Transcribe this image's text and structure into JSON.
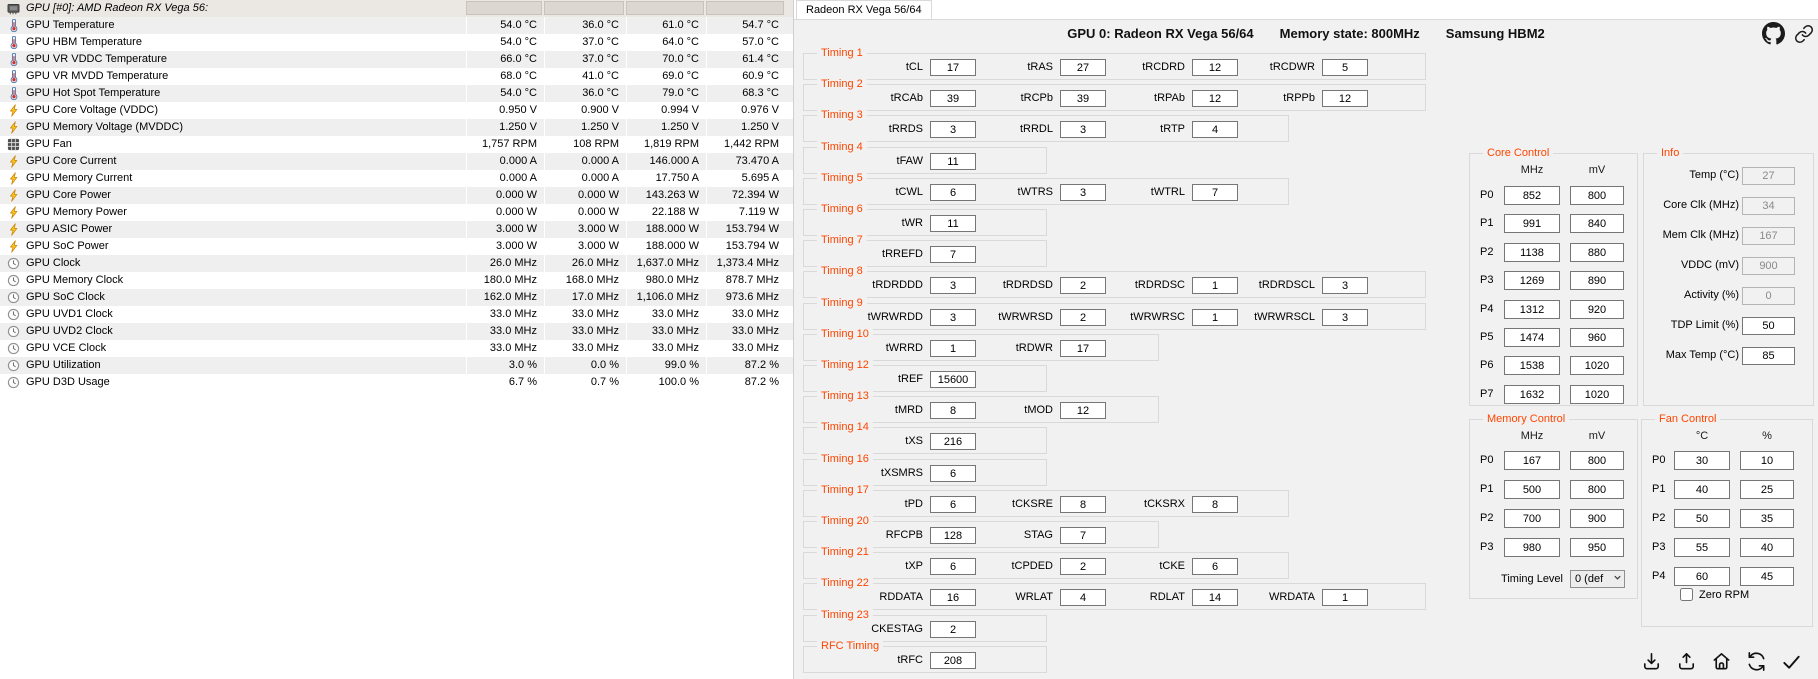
{
  "colors": {
    "accent": "#ff4500",
    "panel_bg": "#f1f1f1"
  },
  "sensor_panel": {
    "header": {
      "icon": "gpu",
      "label": "GPU [#0]: AMD Radeon RX Vega 56:"
    },
    "rows": [
      {
        "icon": "therm",
        "label": "GPU Temperature",
        "values": [
          "54.0 °C",
          "36.0 °C",
          "61.0 °C",
          "54.7 °C"
        ]
      },
      {
        "icon": "therm",
        "label": "GPU HBM Temperature",
        "values": [
          "54.0 °C",
          "37.0 °C",
          "64.0 °C",
          "57.0 °C"
        ]
      },
      {
        "icon": "therm",
        "label": "GPU VR VDDC Temperature",
        "values": [
          "66.0 °C",
          "37.0 °C",
          "70.0 °C",
          "61.4 °C"
        ]
      },
      {
        "icon": "therm",
        "label": "GPU VR MVDD Temperature",
        "values": [
          "68.0 °C",
          "41.0 °C",
          "69.0 °C",
          "60.9 °C"
        ]
      },
      {
        "icon": "therm",
        "label": "GPU Hot Spot Temperature",
        "values": [
          "54.0 °C",
          "36.0 °C",
          "79.0 °C",
          "68.3 °C"
        ]
      },
      {
        "icon": "bolt",
        "label": "GPU Core Voltage (VDDC)",
        "values": [
          "0.950 V",
          "0.900 V",
          "0.994 V",
          "0.976 V"
        ]
      },
      {
        "icon": "bolt",
        "label": "GPU Memory Voltage (MVDDC)",
        "values": [
          "1.250 V",
          "1.250 V",
          "1.250 V",
          "1.250 V"
        ]
      },
      {
        "icon": "fan",
        "label": "GPU Fan",
        "values": [
          "1,757 RPM",
          "108 RPM",
          "1,819 RPM",
          "1,442 RPM"
        ]
      },
      {
        "icon": "bolt",
        "label": "GPU Core Current",
        "values": [
          "0.000 A",
          "0.000 A",
          "146.000 A",
          "73.470 A"
        ]
      },
      {
        "icon": "bolt",
        "label": "GPU Memory Current",
        "values": [
          "0.000 A",
          "0.000 A",
          "17.750 A",
          "5.695 A"
        ]
      },
      {
        "icon": "bolt",
        "label": "GPU Core Power",
        "values": [
          "0.000 W",
          "0.000 W",
          "143.263 W",
          "72.394 W"
        ]
      },
      {
        "icon": "bolt",
        "label": "GPU Memory Power",
        "values": [
          "0.000 W",
          "0.000 W",
          "22.188 W",
          "7.119 W"
        ]
      },
      {
        "icon": "bolt",
        "label": "GPU ASIC Power",
        "values": [
          "3.000 W",
          "3.000 W",
          "188.000 W",
          "153.794 W"
        ]
      },
      {
        "icon": "bolt",
        "label": "GPU SoC Power",
        "values": [
          "3.000 W",
          "3.000 W",
          "188.000 W",
          "153.794 W"
        ]
      },
      {
        "icon": "clock",
        "label": "GPU Clock",
        "values": [
          "26.0 MHz",
          "26.0 MHz",
          "1,637.0 MHz",
          "1,373.4 MHz"
        ]
      },
      {
        "icon": "clock",
        "label": "GPU Memory Clock",
        "values": [
          "180.0 MHz",
          "168.0 MHz",
          "980.0 MHz",
          "878.7 MHz"
        ]
      },
      {
        "icon": "clock",
        "label": "GPU SoC Clock",
        "values": [
          "162.0 MHz",
          "17.0 MHz",
          "1,106.0 MHz",
          "973.6 MHz"
        ]
      },
      {
        "icon": "clock",
        "label": "GPU UVD1 Clock",
        "values": [
          "33.0 MHz",
          "33.0 MHz",
          "33.0 MHz",
          "33.0 MHz"
        ]
      },
      {
        "icon": "clock",
        "label": "GPU UVD2 Clock",
        "values": [
          "33.0 MHz",
          "33.0 MHz",
          "33.0 MHz",
          "33.0 MHz"
        ]
      },
      {
        "icon": "clock",
        "label": "GPU VCE Clock",
        "values": [
          "33.0 MHz",
          "33.0 MHz",
          "33.0 MHz",
          "33.0 MHz"
        ]
      },
      {
        "icon": "clock",
        "label": "GPU Utilization",
        "values": [
          "3.0 %",
          "0.0 %",
          "99.0 %",
          "87.2 %"
        ]
      },
      {
        "icon": "clock",
        "label": "GPU D3D Usage",
        "values": [
          "6.7 %",
          "0.7 %",
          "100.0 %",
          "87.2 %"
        ]
      }
    ]
  },
  "tweak_panel": {
    "tab": "Radeon RX Vega 56/64",
    "title": [
      "GPU 0: Radeon RX Vega 56/64",
      "Memory state: 800MHz",
      "Samsung HBM2"
    ],
    "timing_groups": [
      {
        "name": "Timing 1",
        "fields": [
          [
            "tCL",
            "17"
          ],
          [
            "tRAS",
            "27"
          ],
          [
            "tRCDRD",
            "12"
          ],
          [
            "tRCDWR",
            "5"
          ]
        ]
      },
      {
        "name": "Timing 2",
        "fields": [
          [
            "tRCAb",
            "39"
          ],
          [
            "tRCPb",
            "39"
          ],
          [
            "tRPAb",
            "12"
          ],
          [
            "tRPPb",
            "12"
          ]
        ]
      },
      {
        "name": "Timing 3",
        "fields": [
          [
            "tRRDS",
            "3"
          ],
          [
            "tRRDL",
            "3"
          ],
          [
            "tRTP",
            "4"
          ]
        ]
      },
      {
        "name": "Timing 4",
        "fields": [
          [
            "tFAW",
            "11"
          ]
        ]
      },
      {
        "name": "Timing 5",
        "fields": [
          [
            "tCWL",
            "6"
          ],
          [
            "tWTRS",
            "3"
          ],
          [
            "tWTRL",
            "7"
          ]
        ]
      },
      {
        "name": "Timing 6",
        "fields": [
          [
            "tWR",
            "11"
          ]
        ]
      },
      {
        "name": "Timing 7",
        "fields": [
          [
            "tRREFD",
            "7"
          ]
        ]
      },
      {
        "name": "Timing 8",
        "fields": [
          [
            "tRDRDDD",
            "3"
          ],
          [
            "tRDRDSD",
            "2"
          ],
          [
            "tRDRDSC",
            "1"
          ],
          [
            "tRDRDSCL",
            "3"
          ]
        ]
      },
      {
        "name": "Timing 9",
        "fields": [
          [
            "tWRWRDD",
            "3"
          ],
          [
            "tWRWRSD",
            "2"
          ],
          [
            "tWRWRSC",
            "1"
          ],
          [
            "tWRWRSCL",
            "3"
          ]
        ]
      },
      {
        "name": "Timing 10",
        "fields": [
          [
            "tWRRD",
            "1"
          ],
          [
            "tRDWR",
            "17"
          ]
        ]
      },
      {
        "name": "Timing 12",
        "fields": [
          [
            "tREF",
            "15600"
          ]
        ]
      },
      {
        "name": "Timing 13",
        "fields": [
          [
            "tMRD",
            "8"
          ],
          [
            "tMOD",
            "12"
          ]
        ]
      },
      {
        "name": "Timing 14",
        "fields": [
          [
            "tXS",
            "216"
          ]
        ]
      },
      {
        "name": "Timing 16",
        "fields": [
          [
            "tXSMRS",
            "6"
          ]
        ]
      },
      {
        "name": "Timing 17",
        "fields": [
          [
            "tPD",
            "6"
          ],
          [
            "tCKSRE",
            "8"
          ],
          [
            "tCKSRX",
            "8"
          ]
        ]
      },
      {
        "name": "Timing 20",
        "fields": [
          [
            "RFCPB",
            "128"
          ],
          [
            "STAG",
            "7"
          ]
        ]
      },
      {
        "name": "Timing 21",
        "fields": [
          [
            "tXP",
            "6"
          ],
          [
            "tCPDED",
            "2"
          ],
          [
            "tCKE",
            "6"
          ]
        ]
      },
      {
        "name": "Timing 22",
        "fields": [
          [
            "RDDATA",
            "16"
          ],
          [
            "WRLAT",
            "4"
          ],
          [
            "RDLAT",
            "14"
          ],
          [
            "WRDATA",
            "1"
          ]
        ]
      },
      {
        "name": "Timing 23",
        "fields": [
          [
            "CKESTAG",
            "2"
          ]
        ]
      },
      {
        "name": "RFC Timing",
        "fields": [
          [
            "tRFC",
            "208"
          ]
        ]
      }
    ],
    "core_control": {
      "title": "Core Control",
      "cols": [
        "MHz",
        "mV"
      ],
      "rows": [
        [
          "P0",
          "852",
          "800"
        ],
        [
          "P1",
          "991",
          "840"
        ],
        [
          "P2",
          "1138",
          "880"
        ],
        [
          "P3",
          "1269",
          "890"
        ],
        [
          "P4",
          "1312",
          "920"
        ],
        [
          "P5",
          "1474",
          "960"
        ],
        [
          "P6",
          "1538",
          "1020"
        ],
        [
          "P7",
          "1632",
          "1020"
        ]
      ]
    },
    "info": {
      "title": "Info",
      "rows": [
        {
          "label": "Temp (°C)",
          "value": "27",
          "disabled": true
        },
        {
          "label": "Core Clk (MHz)",
          "value": "34",
          "disabled": true
        },
        {
          "label": "Mem Clk (MHz)",
          "value": "167",
          "disabled": true
        },
        {
          "label": "VDDC (mV)",
          "value": "900",
          "disabled": true
        },
        {
          "label": "Activity (%)",
          "value": "0",
          "disabled": true
        },
        {
          "label": "TDP Limit (%)",
          "value": "50",
          "disabled": false
        },
        {
          "label": "Max Temp (°C)",
          "value": "85",
          "disabled": false
        }
      ]
    },
    "memory_control": {
      "title": "Memory Control",
      "cols": [
        "MHz",
        "mV"
      ],
      "rows": [
        [
          "P0",
          "167",
          "800"
        ],
        [
          "P1",
          "500",
          "800"
        ],
        [
          "P2",
          "700",
          "900"
        ],
        [
          "P3",
          "980",
          "950"
        ]
      ],
      "timing_level": {
        "label": "Timing Level",
        "value": "0 (def"
      }
    },
    "fan_control": {
      "title": "Fan Control",
      "cols": [
        "°C",
        "%"
      ],
      "rows": [
        [
          "P0",
          "30",
          "10"
        ],
        [
          "P1",
          "40",
          "25"
        ],
        [
          "P2",
          "50",
          "35"
        ],
        [
          "P3",
          "55",
          "40"
        ],
        [
          "P4",
          "60",
          "45"
        ]
      ],
      "zero_rpm": "Zero RPM"
    },
    "toolbar": [
      "download",
      "upload",
      "home",
      "refresh",
      "checkmark"
    ],
    "header_icons": [
      "github",
      "link"
    ]
  }
}
